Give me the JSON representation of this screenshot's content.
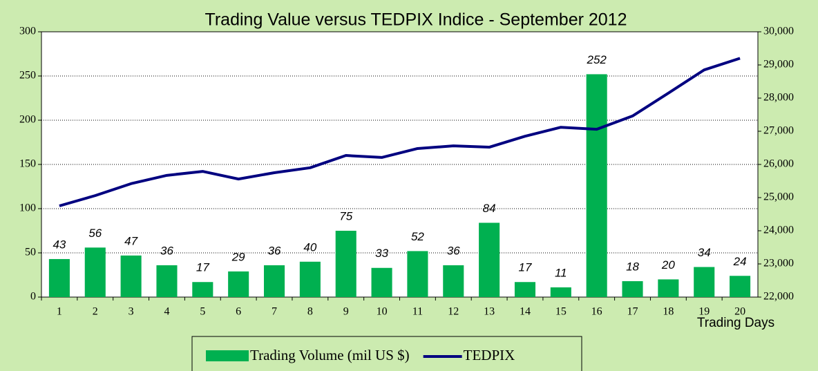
{
  "chart_data": {
    "type": "bar",
    "title": "Trading Value versus TEDPIX Indice - September 2012",
    "x_label": "Trading Days",
    "categories": [
      "1",
      "2",
      "3",
      "4",
      "5",
      "6",
      "7",
      "8",
      "9",
      "10",
      "11",
      "12",
      "13",
      "14",
      "15",
      "16",
      "17",
      "18",
      "19",
      "20"
    ],
    "series": [
      {
        "name": "Trading Volume (mil US $)",
        "type": "bar",
        "color": "#00b050",
        "values": [
          43,
          56,
          47,
          36,
          17,
          29,
          36,
          40,
          75,
          33,
          52,
          36,
          84,
          17,
          11,
          252,
          18,
          20,
          34,
          24
        ]
      },
      {
        "name": "TEDPIX",
        "type": "line",
        "axis": "y2",
        "color": "#000080",
        "values": [
          24750,
          25060,
          25420,
          25670,
          25790,
          25560,
          25750,
          25900,
          26270,
          26210,
          26480,
          26560,
          26520,
          26850,
          27120,
          27060,
          27460,
          28150,
          28850,
          29200
        ]
      }
    ],
    "ylim": [
      0,
      300
    ],
    "yticks": [
      0,
      50,
      100,
      150,
      200,
      250,
      300
    ],
    "y2lim": [
      22000,
      30000
    ],
    "y2ticks": [
      {
        "value": 22000,
        "label": "22,000"
      },
      {
        "value": 23000,
        "label": "23,000"
      },
      {
        "value": 24000,
        "label": "24,000"
      },
      {
        "value": 25000,
        "label": "25,000"
      },
      {
        "value": 26000,
        "label": "26,000"
      },
      {
        "value": 27000,
        "label": "27,000"
      },
      {
        "value": 28000,
        "label": "28,000"
      },
      {
        "value": 29000,
        "label": "29,000"
      },
      {
        "value": 30000,
        "label": "30,000"
      }
    ],
    "grid": true,
    "legend": "bottom"
  }
}
